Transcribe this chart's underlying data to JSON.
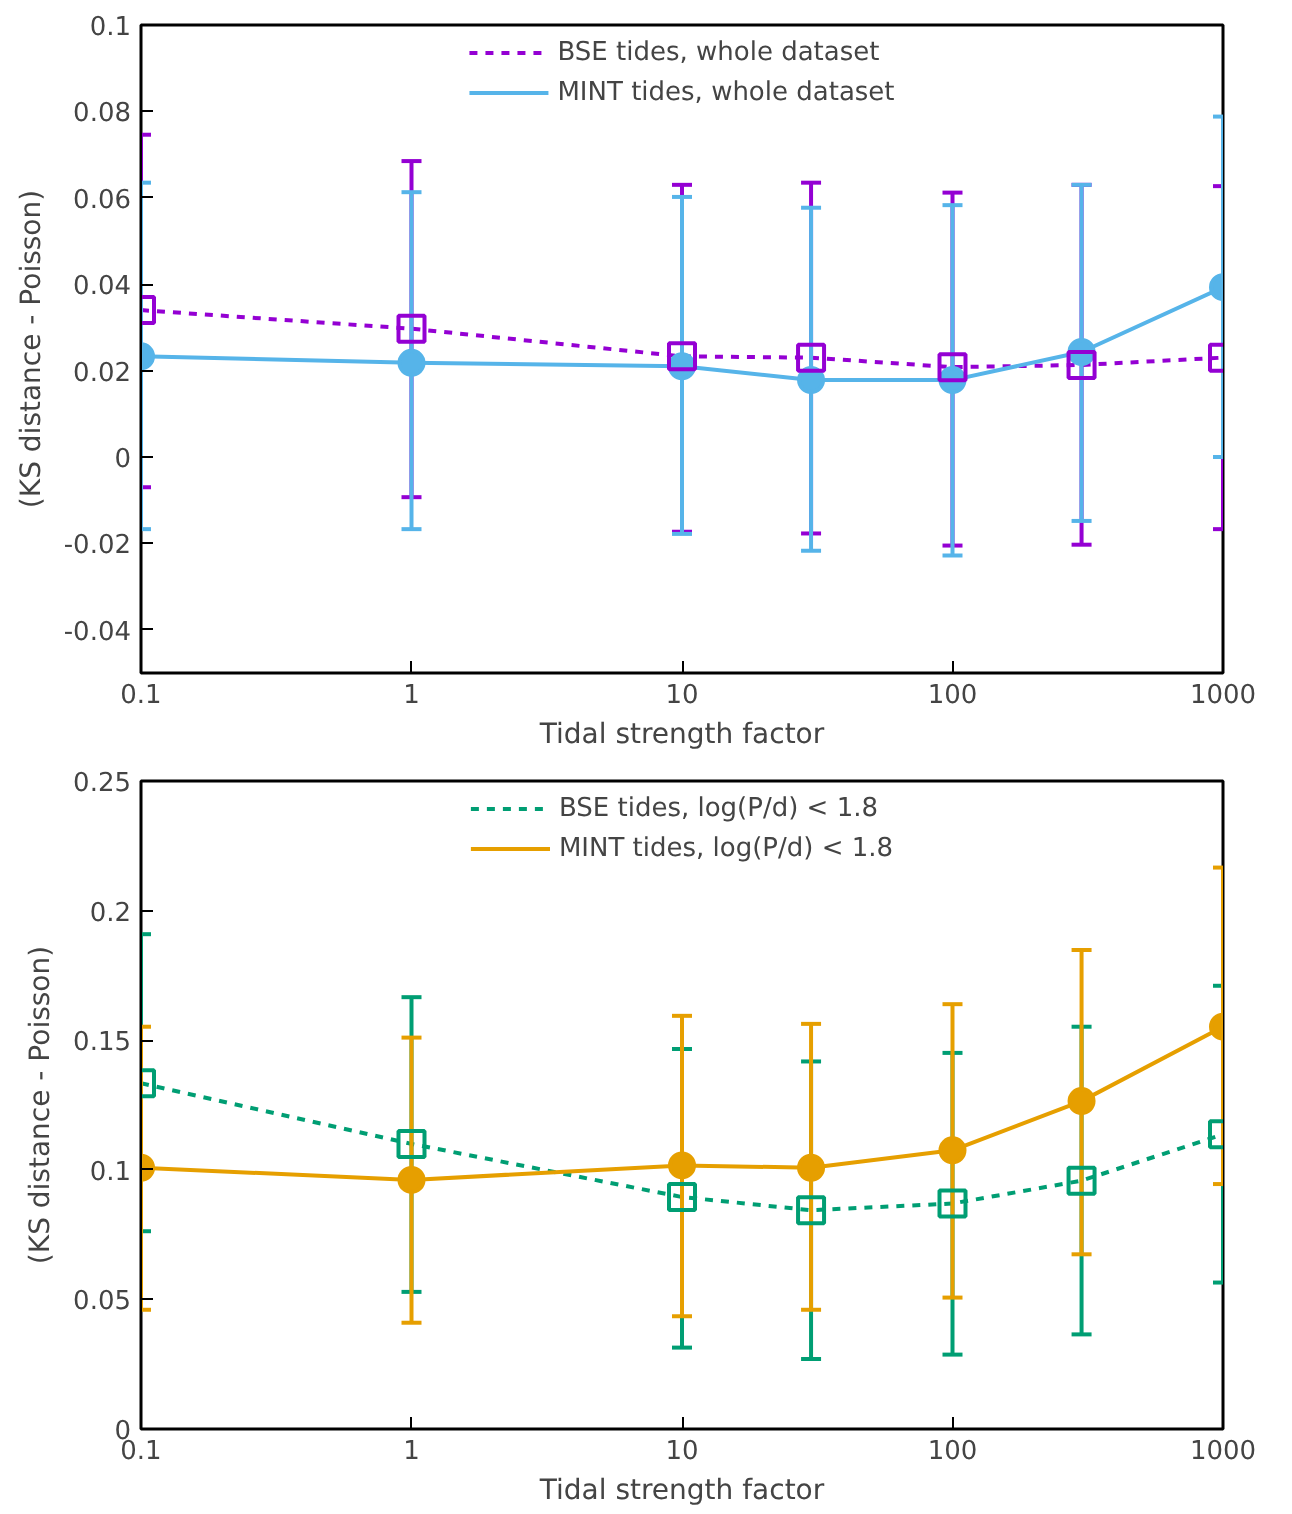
{
  "chart_data": [
    {
      "type": "line",
      "xlabel": "Tidal strength factor",
      "ylabel": "(KS distance - Poisson)",
      "x": [
        0.1,
        1,
        10,
        30,
        100,
        300,
        1000
      ],
      "log": "x",
      "xlim": [
        0.1,
        1000
      ],
      "xticks": [
        0.1,
        1,
        10,
        100,
        1000
      ],
      "ylim": [
        -0.05,
        0.1
      ],
      "yticks": [
        -0.04,
        -0.02,
        0,
        0.02,
        0.04,
        0.06,
        0.08,
        0.1
      ],
      "grid": false,
      "legend": "top",
      "series": [
        {
          "name": "BSE tides, whole dataset",
          "color": "#9400d3",
          "marker": "square",
          "line_style": "dashed",
          "values": [
            0.034,
            0.0297,
            0.0233,
            0.023,
            0.0208,
            0.0213,
            0.023
          ],
          "errors": [
            [
              -0.007,
              0.0746
            ],
            [
              -0.0093,
              0.0685
            ],
            [
              -0.0173,
              0.063
            ],
            [
              -0.0177,
              0.0635
            ],
            [
              -0.0205,
              0.0612
            ],
            [
              -0.0203,
              0.063
            ],
            [
              -0.0167,
              0.0627
            ]
          ]
        },
        {
          "name": "MINT tides, whole dataset",
          "color": "#56b4e9",
          "marker": "circle",
          "line_style": "solid",
          "values": [
            0.0233,
            0.0218,
            0.021,
            0.0178,
            0.0178,
            0.0243,
            0.0393
          ],
          "errors": [
            [
              -0.0167,
              0.0635
            ],
            [
              -0.0167,
              0.0613
            ],
            [
              -0.0178,
              0.0602
            ],
            [
              -0.0217,
              0.0577
            ],
            [
              -0.0228,
              0.0583
            ],
            [
              -0.0148,
              0.063
            ],
            [
              0.0,
              0.0788
            ]
          ]
        }
      ]
    },
    {
      "type": "line",
      "xlabel": "Tidal strength factor",
      "ylabel": "(KS distance - Poisson)",
      "x": [
        0.1,
        1,
        10,
        30,
        100,
        300,
        1000
      ],
      "log": "x",
      "xlim": [
        0.1,
        1000
      ],
      "xticks": [
        0.1,
        1,
        10,
        100,
        1000
      ],
      "ylim": [
        0,
        0.25
      ],
      "yticks": [
        0,
        0.05,
        0.1,
        0.15,
        0.2,
        0.25
      ],
      "grid": false,
      "legend": "top",
      "series": [
        {
          "name": "BSE tides, log(P/d) < 1.8",
          "color": "#009e73",
          "marker": "square",
          "line_style": "dashed",
          "values": [
            0.1334,
            0.11,
            0.0895,
            0.0844,
            0.087,
            0.0958,
            0.1137
          ],
          "errors": [
            [
              0.0763,
              0.1909
            ],
            [
              0.0529,
              0.1666
            ],
            [
              0.0314,
              0.1466
            ],
            [
              0.027,
              0.1418
            ],
            [
              0.0287,
              0.1451
            ],
            [
              0.0365,
              0.1552
            ],
            [
              0.0565,
              0.171
            ]
          ]
        },
        {
          "name": "MINT tides, log(P/d) < 1.8",
          "color": "#e69f00",
          "marker": "circle",
          "line_style": "solid",
          "values": [
            0.1008,
            0.0961,
            0.1017,
            0.1008,
            0.1075,
            0.1265,
            0.1552
          ],
          "errors": [
            [
              0.046,
              0.1552
            ],
            [
              0.041,
              0.151
            ],
            [
              0.0435,
              0.1594
            ],
            [
              0.046,
              0.1563
            ],
            [
              0.0507,
              0.1639
            ],
            [
              0.0674,
              0.1848
            ],
            [
              0.0945,
              0.2166
            ]
          ]
        }
      ]
    }
  ]
}
